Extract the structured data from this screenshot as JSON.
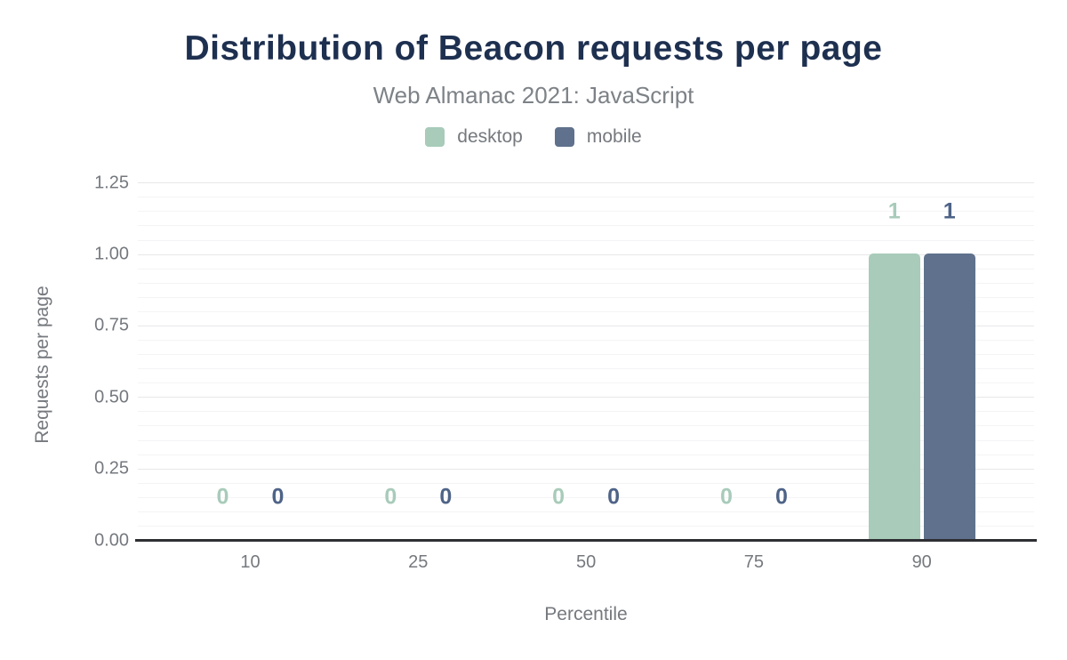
{
  "chart_data": {
    "type": "bar",
    "title": "Distribution of Beacon requests per page",
    "subtitle": "Web Almanac 2021: JavaScript",
    "xlabel": "Percentile",
    "ylabel": "Requests per page",
    "categories": [
      "10",
      "25",
      "50",
      "75",
      "90"
    ],
    "series": [
      {
        "name": "desktop",
        "color": "#a8cbba",
        "label_color": "#a8cbba",
        "values": [
          0,
          0,
          0,
          0,
          1
        ]
      },
      {
        "name": "mobile",
        "color": "#5f718c",
        "label_color": "#4e6387",
        "values": [
          0,
          0,
          0,
          0,
          1
        ]
      }
    ],
    "y_ticks": [
      "0.00",
      "0.25",
      "0.50",
      "0.75",
      "1.00",
      "1.25"
    ],
    "ylim": [
      0,
      1.25
    ],
    "grid": {
      "major_step": 0.25,
      "minor_step": 0.05,
      "on": true
    },
    "legend_position": "top"
  },
  "theme": {
    "title_color": "#1e3050",
    "subtitle_color": "#7d8287",
    "secondary_text_color": "#75797e",
    "axis_line_color": "#2d2f33",
    "major_gridline_color": "#e7e8eb",
    "minor_gridline_color": "#f4f4f6",
    "background": "#ffffff"
  }
}
